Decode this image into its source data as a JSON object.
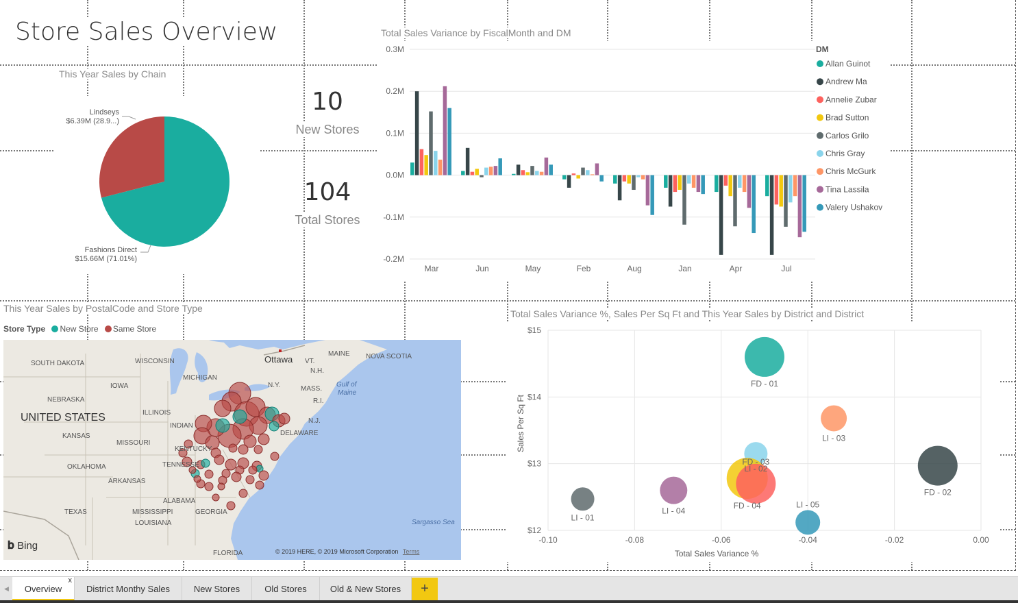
{
  "report": {
    "title": "Store Sales Overview"
  },
  "pie": {
    "title": "This Year Sales by Chain",
    "slices": [
      {
        "name": "Fashions Direct",
        "label_line1": "Fashions Direct",
        "label_line2": "$15.66M (71.01%)",
        "share": 0.7101,
        "color": "#1aad9f"
      },
      {
        "name": "Lindseys",
        "label_line1": "Lindseys",
        "label_line2": "$6.39M (28.9...)",
        "share": 0.2899,
        "color": "#b84a47"
      }
    ]
  },
  "cards": [
    {
      "value": "10",
      "label": "New Stores"
    },
    {
      "value": "104",
      "label": "Total Stores"
    }
  ],
  "chart_data": [
    {
      "type": "bar",
      "title": "Total Sales Variance by FiscalMonth and DM",
      "categories": [
        "Mar",
        "Jun",
        "May",
        "Feb",
        "Aug",
        "Jan",
        "Apr",
        "Jul"
      ],
      "y_ticks": [
        "0.3M",
        "0.2M",
        "0.1M",
        "0.0M",
        "-0.1M",
        "-0.2M"
      ],
      "ylim": [
        -0.2,
        0.3
      ],
      "legend_title": "DM",
      "legend_position": "right",
      "series": [
        {
          "name": "Allan Guinot",
          "color": "#1aad9f",
          "values": [
            0.03,
            0.01,
            0.003,
            -0.01,
            -0.02,
            -0.03,
            -0.04,
            -0.05
          ]
        },
        {
          "name": "Andrew Ma",
          "color": "#374649",
          "values": [
            0.2,
            0.065,
            0.025,
            -0.03,
            -0.06,
            -0.075,
            -0.19,
            -0.19
          ]
        },
        {
          "name": "Annelie Zubar",
          "color": "#fd625e",
          "values": [
            0.062,
            0.008,
            0.012,
            0.004,
            -0.015,
            -0.04,
            -0.025,
            -0.07
          ]
        },
        {
          "name": "Brad Sutton",
          "color": "#f2c80f",
          "values": [
            0.048,
            0.015,
            0.007,
            -0.008,
            -0.02,
            -0.035,
            -0.05,
            -0.075
          ]
        },
        {
          "name": "Carlos Grilo",
          "color": "#5f6b6d",
          "values": [
            0.152,
            -0.005,
            0.022,
            0.018,
            -0.035,
            -0.118,
            -0.122,
            -0.123
          ]
        },
        {
          "name": "Chris Gray",
          "color": "#8ad4eb",
          "values": [
            0.058,
            0.018,
            0.01,
            0.012,
            -0.005,
            -0.02,
            -0.03,
            -0.065
          ]
        },
        {
          "name": "Chris McGurk",
          "color": "#fe9666",
          "values": [
            0.037,
            0.02,
            0.008,
            0.002,
            -0.01,
            -0.03,
            -0.04,
            -0.05
          ]
        },
        {
          "name": "Tina Lassila",
          "color": "#a66999",
          "values": [
            0.212,
            0.022,
            0.042,
            0.028,
            -0.072,
            -0.04,
            -0.078,
            -0.148
          ]
        },
        {
          "name": "Valery Ushakov",
          "color": "#3599b8",
          "values": [
            0.16,
            0.04,
            0.025,
            -0.015,
            -0.095,
            -0.045,
            -0.138,
            -0.135
          ]
        }
      ]
    },
    {
      "type": "scatter",
      "title": "Total Sales Variance %, Sales Per Sq Ft and This Year Sales by District and District",
      "xlabel": "Total Sales Variance %",
      "ylabel": "Sales Per Sq Ft",
      "xlim": [
        -0.1,
        0.0
      ],
      "ylim": [
        12,
        15
      ],
      "x_ticks": [
        "-0.10",
        "-0.08",
        "-0.06",
        "-0.04",
        "-0.02",
        "0.00"
      ],
      "y_ticks": [
        "$15",
        "$14",
        "$13",
        "$12"
      ],
      "points": [
        {
          "label": "FD - 01",
          "x": -0.05,
          "y": 14.6,
          "size": 29,
          "color": "#1aad9f"
        },
        {
          "label": "LI - 03",
          "x": -0.034,
          "y": 13.68,
          "size": 19,
          "color": "#fe9666"
        },
        {
          "label": "FD - 03",
          "x": -0.052,
          "y": 13.15,
          "size": 17,
          "color": "#8ad4eb"
        },
        {
          "label": "FD - 02",
          "x": -0.01,
          "y": 12.97,
          "size": 29,
          "color": "#374649"
        },
        {
          "label": "FD - 04",
          "x": -0.054,
          "y": 12.78,
          "size": 30,
          "color": "#f2c80f"
        },
        {
          "label": "LI - 02",
          "x": -0.052,
          "y": 12.7,
          "size": 29,
          "color": "#fd625e"
        },
        {
          "label": "LI - 04",
          "x": -0.071,
          "y": 12.6,
          "size": 20,
          "color": "#a66999"
        },
        {
          "label": "LI - 01",
          "x": -0.092,
          "y": 12.47,
          "size": 17,
          "color": "#5f6b6d"
        },
        {
          "label": "LI - 05",
          "x": -0.04,
          "y": 12.12,
          "size": 18,
          "color": "#3599b8"
        }
      ]
    }
  ],
  "map": {
    "title": "This Year Sales by PostalCode and Store Type",
    "legend_title": "Store Type",
    "legend_items": [
      {
        "name": "New Store",
        "color": "#1aad9f"
      },
      {
        "name": "Same Store",
        "color": "#b84a47"
      }
    ],
    "labels": {
      "south_dakota": "SOUTH DAKOTA",
      "wisconsin": "WISCONSIN",
      "michigan": "MICHIGAN",
      "iowa": "IOWA",
      "nebraska": "NEBRASKA",
      "illinois": "ILLINOIS",
      "indiana": "INDIAN",
      "united_states": "UNITED STATES",
      "kansas": "KANSAS",
      "missouri": "MISSOURI",
      "kentucky": "KENTUCKY",
      "oklahoma": "OKLAHOMA",
      "tennessee": "TENNESSE",
      "arkansas": "ARKANSAS",
      "alabama": "ALABAMA",
      "texas": "TEXAS",
      "mississippi": "MISSISSIPPI",
      "georgia": "GEORGIA",
      "louisiana": "LOUISIANA",
      "florida": "FLORIDA",
      "ottawa": "Ottawa",
      "vt": "VT.",
      "nh": "N.H.",
      "maine": "MAINE",
      "nova_scotia": "NOVA SCOTIA",
      "ny": "N.Y.",
      "mass": "MASS.",
      "ri": "R.I.",
      "nj": "N.J.",
      "delaware": "DELAWARE",
      "gulf_maine_1": "Gulf of",
      "gulf_maine_2": "Maine",
      "sargasso": "Sargasso Sea"
    },
    "bing": "Bing",
    "copyright": "© 2019 HERE, © 2019 Microsoft Corporation",
    "terms": "Terms"
  },
  "tabs": [
    {
      "label": "Overview",
      "active": true
    },
    {
      "label": "District Monthy Sales"
    },
    {
      "label": "New Stores"
    },
    {
      "label": "Old Stores"
    },
    {
      "label": "Old & New Stores"
    }
  ],
  "tab_close": "x",
  "tab_add": "+",
  "tab_scroll": "◀"
}
